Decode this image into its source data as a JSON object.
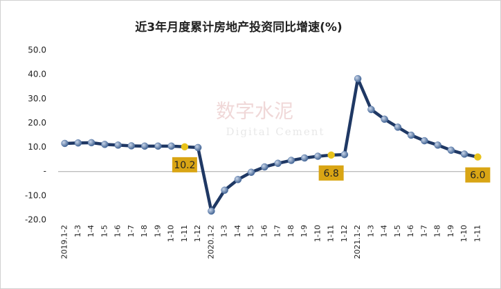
{
  "chart_data": {
    "type": "line",
    "title": "近3年月度累计房地产投资同比增速(%)",
    "watermark": "数字水泥",
    "watermark_sub": "Digital Cement",
    "categories": [
      "2019.1-2",
      "1-3",
      "1-4",
      "1-5",
      "1-6",
      "1-7",
      "1-8",
      "1-9",
      "1-10",
      "1-11",
      "1-12",
      "2020.1-2",
      "1-3",
      "1-4",
      "1-5",
      "1-6",
      "1-7",
      "1-8",
      "1-9",
      "1-10",
      "1-11",
      "1-12",
      "2021.1-2",
      "1-3",
      "1-4",
      "1-5",
      "1-6",
      "1-7",
      "1-8",
      "1-9",
      "1-10",
      "1-11"
    ],
    "series": [
      {
        "name": "房地产投资同比增速",
        "color": "#1f3864",
        "values": [
          11.6,
          11.8,
          11.9,
          11.2,
          10.9,
          10.6,
          10.5,
          10.5,
          10.5,
          10.2,
          9.9,
          -16.3,
          -7.7,
          -3.3,
          -0.3,
          1.9,
          3.4,
          4.6,
          5.6,
          6.3,
          6.8,
          7.0,
          38.3,
          25.6,
          21.6,
          18.3,
          15.0,
          12.7,
          10.9,
          8.8,
          7.2,
          6.0
        ],
        "value_labels": [
          null,
          null,
          null,
          null,
          null,
          null,
          null,
          null,
          null,
          "10.2",
          null,
          null,
          null,
          null,
          null,
          null,
          null,
          null,
          null,
          null,
          "6.8",
          null,
          null,
          null,
          null,
          null,
          null,
          null,
          null,
          null,
          null,
          "6.0"
        ]
      }
    ],
    "marker_color": "#4a6fa5",
    "highlight_color": "#e8c21a",
    "label_box_color": "#d9a514",
    "ylim": [
      -20,
      50
    ],
    "yticks": [
      {
        "value": -20,
        "label": "-20.0"
      },
      {
        "value": -10,
        "label": "-10.0"
      },
      {
        "value": 0,
        "label": "-"
      },
      {
        "value": 10,
        "label": "10.0"
      },
      {
        "value": 20,
        "label": "20.0"
      },
      {
        "value": 30,
        "label": "30.0"
      },
      {
        "value": 40,
        "label": "40.0"
      },
      {
        "value": 50,
        "label": "50.0"
      }
    ]
  }
}
